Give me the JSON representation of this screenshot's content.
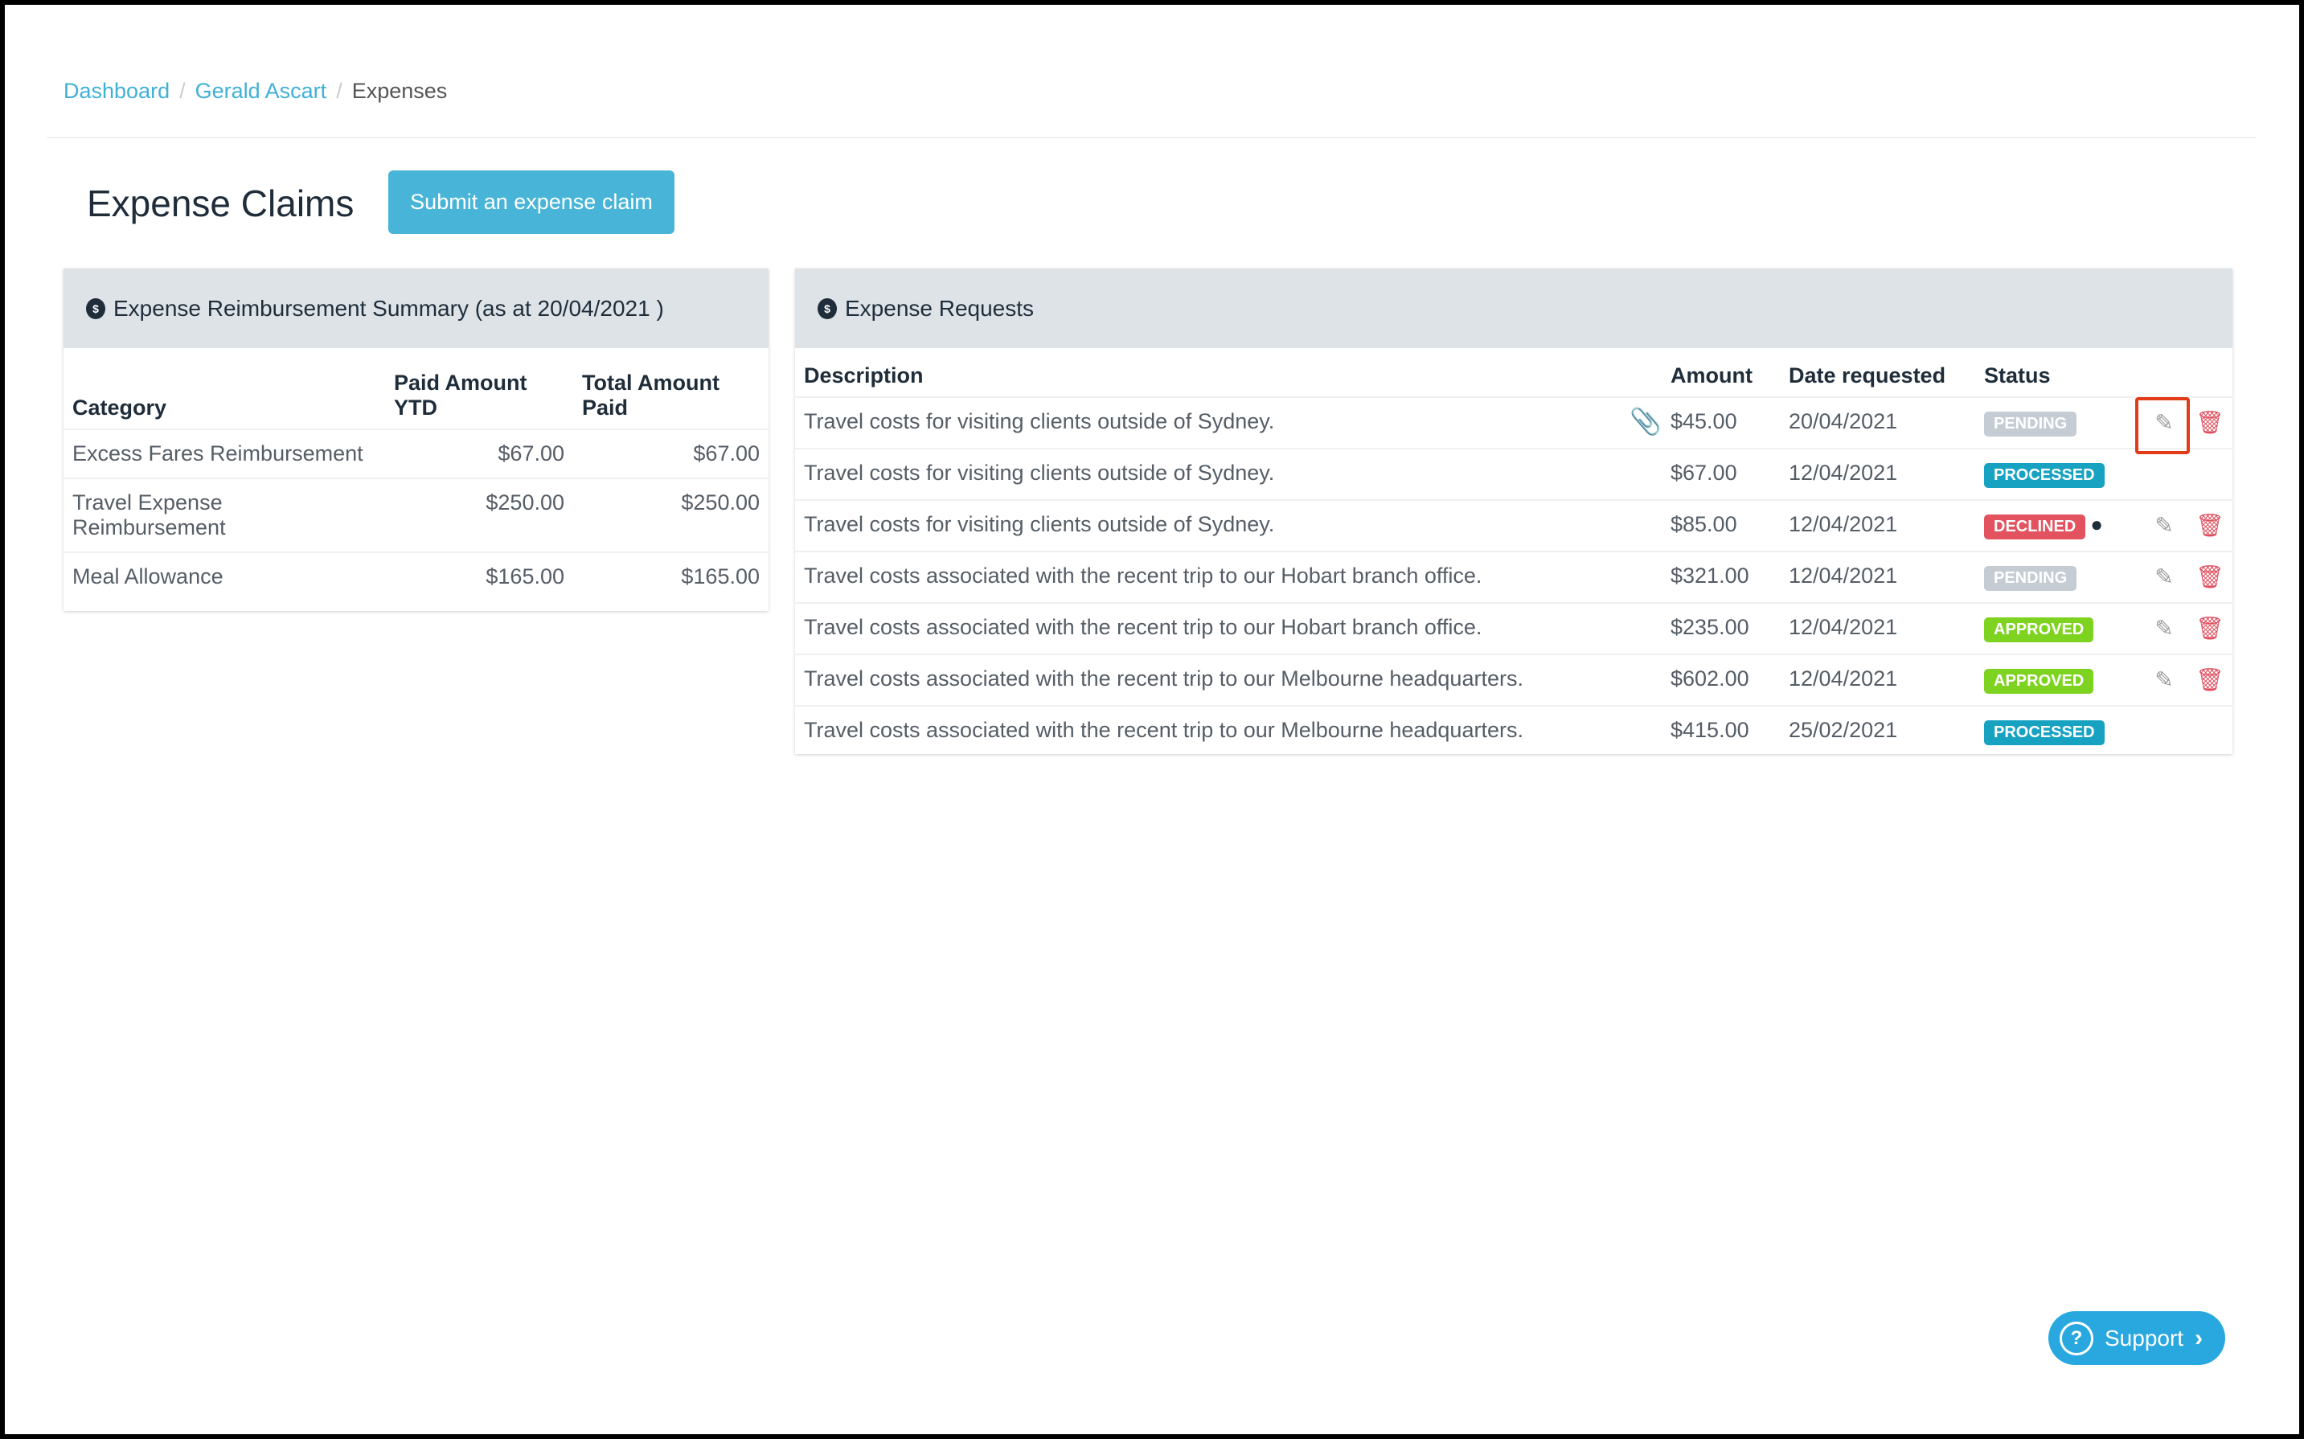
{
  "breadcrumb": [
    "Dashboard",
    "Gerald Ascart",
    "Expenses"
  ],
  "page_title": "Expense Claims",
  "submit_button": "Submit an expense claim",
  "summary": {
    "title": "Expense Reimbursement Summary (as at 20/04/2021 )",
    "columns": [
      "Category",
      "Paid Amount YTD",
      "Total Amount Paid"
    ],
    "rows": [
      [
        "Excess Fares Reimbursement",
        "$67.00",
        "$67.00"
      ],
      [
        "Travel Expense Reimbursement",
        "$250.00",
        "$250.00"
      ],
      [
        "Meal Allowance",
        "$165.00",
        "$165.00"
      ]
    ]
  },
  "requests": {
    "title": "Expense Requests",
    "columns": [
      "Description",
      "Amount",
      "Date requested",
      "Status"
    ],
    "rows": [
      {
        "desc": "Travel costs for visiting clients outside of Sydney.",
        "amount": "$45.00",
        "date": "20/04/2021",
        "status": "PENDING",
        "attachment": true,
        "comment": false,
        "editable": true
      },
      {
        "desc": "Travel costs for visiting clients outside of Sydney.",
        "amount": "$67.00",
        "date": "12/04/2021",
        "status": "PROCESSED",
        "attachment": false,
        "comment": false,
        "editable": false
      },
      {
        "desc": "Travel costs for visiting clients outside of Sydney.",
        "amount": "$85.00",
        "date": "12/04/2021",
        "status": "DECLINED",
        "attachment": false,
        "comment": true,
        "editable": true
      },
      {
        "desc": "Travel costs associated with the recent trip to our Hobart branch office.",
        "amount": "$321.00",
        "date": "12/04/2021",
        "status": "PENDING",
        "attachment": false,
        "comment": false,
        "editable": true
      },
      {
        "desc": "Travel costs associated with the recent trip to our Hobart branch office.",
        "amount": "$235.00",
        "date": "12/04/2021",
        "status": "APPROVED",
        "attachment": false,
        "comment": false,
        "editable": true
      },
      {
        "desc": "Travel costs associated with the recent trip to our Melbourne headquarters.",
        "amount": "$602.00",
        "date": "12/04/2021",
        "status": "APPROVED",
        "attachment": false,
        "comment": false,
        "editable": true
      },
      {
        "desc": "Travel costs associated with the recent trip to our Melbourne headquarters.",
        "amount": "$415.00",
        "date": "25/02/2021",
        "status": "PROCESSED",
        "attachment": false,
        "comment": false,
        "editable": false
      }
    ]
  },
  "status_colors": {
    "PENDING": "#c5ccd3",
    "PROCESSED": "#17a2c2",
    "DECLINED": "#e2525f",
    "APPROVED": "#7ed321"
  },
  "support_label": "Support"
}
